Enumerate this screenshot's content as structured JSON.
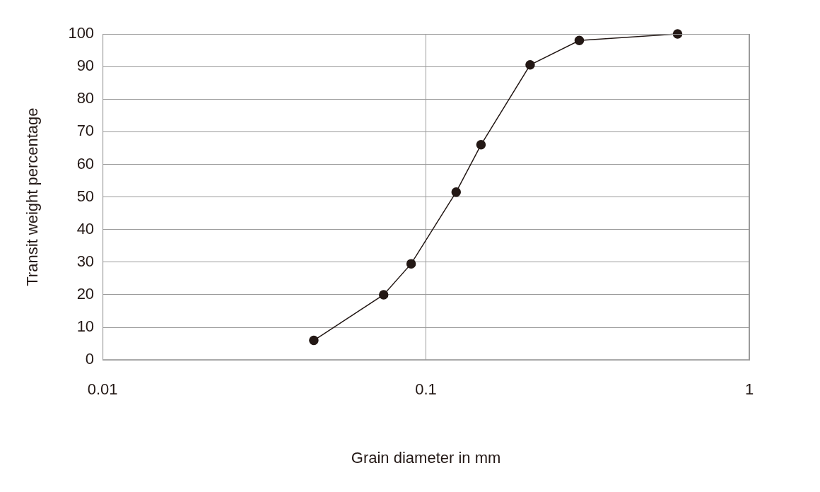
{
  "chart_data": {
    "type": "line",
    "x_label": "Grain diameter in mm",
    "y_label": "Transit weight percentage",
    "x": [
      0.045,
      0.074,
      0.09,
      0.124,
      0.148,
      0.21,
      0.298,
      0.6
    ],
    "values": [
      6,
      20,
      29.5,
      51.5,
      66,
      90.5,
      98,
      100
    ],
    "color": "#231815",
    "marker": "circle",
    "line_style": "solid",
    "log": "x",
    "xlim": [
      0.01,
      1
    ],
    "xticks": [
      0.01,
      0.1,
      1
    ],
    "ylim": [
      0,
      100
    ],
    "yticks": [
      0,
      10,
      20,
      30,
      40,
      50,
      60,
      70,
      80,
      90,
      100
    ],
    "grid": true
  }
}
